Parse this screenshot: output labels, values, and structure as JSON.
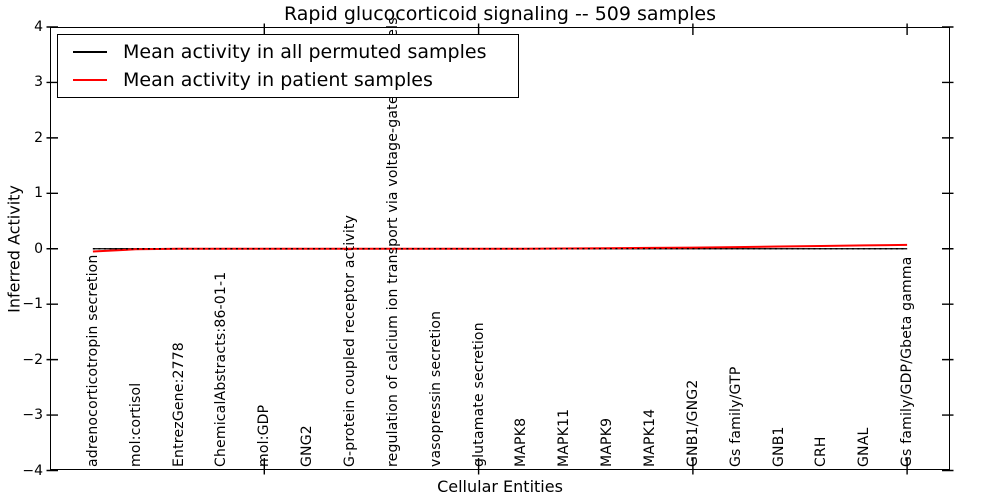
{
  "figure": {
    "title": "Rapid glucocorticoid signaling -- 509 samples",
    "xlabel": "Cellular Entities",
    "ylabel": "Inferred Activity"
  },
  "legend": {
    "position": "upper left",
    "entries": [
      {
        "label": "Mean activity in all permuted samples",
        "color": "#000000"
      },
      {
        "label": "Mean activity in patient samples",
        "color": "#ff0000"
      }
    ]
  },
  "axes": {
    "ytick_labels": [
      "4",
      "3",
      "2",
      "1",
      "0",
      "−1",
      "−2",
      "−3",
      "−4"
    ]
  },
  "chart_data": {
    "type": "line",
    "title": "Rapid glucocorticoid signaling -- 509 samples",
    "xlabel": "Cellular Entities",
    "ylabel": "Inferred Activity",
    "ylim": [
      -4,
      4
    ],
    "yticks": [
      4,
      3,
      2,
      1,
      0,
      -1,
      -2,
      -3,
      -4
    ],
    "xlim": [
      -1,
      20
    ],
    "grid": false,
    "legend_position": "upper left",
    "categories": [
      "adrenocorticotropin secretion",
      "mol:cortisol",
      "EntrezGene:2778",
      "ChemicalAbstracts:86-01-1",
      "mol:GDP",
      "GNG2",
      "G-protein coupled receptor activity",
      "regulation of calcium ion transport via voltage-gated channels",
      "vasopressin secretion",
      "glutamate secretion",
      "MAPK8",
      "MAPK11",
      "MAPK9",
      "MAPK14",
      "GNB1/GNG2",
      "Gs family/GTP",
      "GNB1",
      "CRH",
      "GNAL",
      "Gs family/GDP/Gbeta gamma"
    ],
    "series": [
      {
        "name": "Mean activity in all permuted samples",
        "color": "#000000",
        "linestyle": "solid",
        "values": [
          0,
          0,
          0,
          0,
          0,
          0,
          0,
          0,
          0,
          0,
          0,
          0,
          0,
          0,
          0,
          0,
          0,
          0,
          0,
          0
        ]
      },
      {
        "name": "Mean activity in patient samples",
        "color": "#ff0000",
        "linestyle": "solid",
        "values": [
          -0.05,
          -0.01,
          0,
          0,
          0,
          0,
          0,
          0,
          0,
          0,
          0,
          0.005,
          0.01,
          0.015,
          0.02,
          0.03,
          0.04,
          0.05,
          0.06,
          0.07
        ]
      }
    ],
    "zero_baseline": {
      "y": 0,
      "color": "#000000",
      "linestyle": "dotted"
    },
    "xtick_marks_at_indices": [
      4,
      9,
      14,
      19
    ]
  }
}
